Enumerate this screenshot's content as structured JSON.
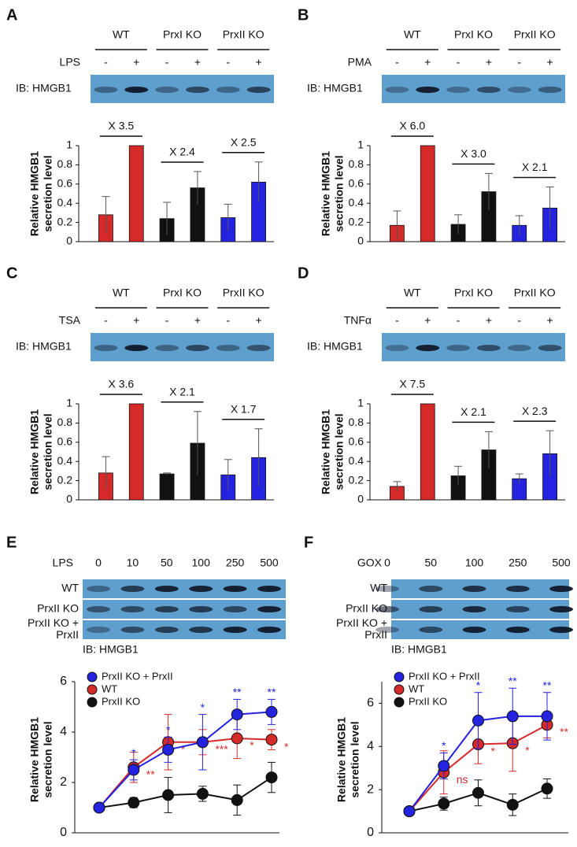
{
  "chart_data": [
    {
      "type": "bar",
      "panel_label": "A",
      "groups": [
        "WT",
        "PrxI KO",
        "PrxII KO"
      ],
      "treatment": "LPS",
      "signs": [
        "-",
        "+",
        "-",
        "+",
        "-",
        "+"
      ],
      "blot_label": "IB: HMGB1",
      "ylabel": [
        "Relative HMGB1",
        "secretion level"
      ],
      "values": [
        0.28,
        1,
        0.24,
        0.56,
        0.25,
        0.62
      ],
      "errors": [
        0.19,
        0,
        0.17,
        0.17,
        0.14,
        0.21
      ],
      "colors": [
        "#d42a2a",
        "#d42a2a",
        "#111111",
        "#111111",
        "#2323e0",
        "#2323e0"
      ],
      "fold_labels": [
        "X 3.5",
        "X 2.4",
        "X 2.5"
      ],
      "ylim": [
        0,
        1
      ],
      "yticks": [
        0,
        0.2,
        0.4,
        0.6,
        0.8,
        1
      ]
    },
    {
      "type": "bar",
      "panel_label": "B",
      "groups": [
        "WT",
        "PrxI KO",
        "PrxII KO"
      ],
      "treatment": "PMA",
      "signs": [
        "-",
        "+",
        "-",
        "+",
        "-",
        "+"
      ],
      "blot_label": "IB: HMGB1",
      "ylabel": [
        "Relative HMGB1",
        "secretion level"
      ],
      "values": [
        0.17,
        1,
        0.18,
        0.52,
        0.17,
        0.35
      ],
      "errors": [
        0.15,
        0,
        0.1,
        0.19,
        0.1,
        0.22
      ],
      "colors": [
        "#d42a2a",
        "#d42a2a",
        "#111111",
        "#111111",
        "#2323e0",
        "#2323e0"
      ],
      "fold_labels": [
        "X 6.0",
        "X 3.0",
        "X 2.1"
      ],
      "ylim": [
        0,
        1
      ],
      "yticks": [
        0,
        0.2,
        0.4,
        0.6,
        0.8,
        1
      ]
    },
    {
      "type": "bar",
      "panel_label": "C",
      "groups": [
        "WT",
        "PrxI KO",
        "PrxII KO"
      ],
      "treatment": "TSA",
      "signs": [
        "-",
        "+",
        "-",
        "+",
        "-",
        "+"
      ],
      "blot_label": "IB: HMGB1",
      "ylabel": [
        "Relative HMGB1",
        "secretion level"
      ],
      "values": [
        0.28,
        1,
        0.27,
        0.59,
        0.26,
        0.44
      ],
      "errors": [
        0.17,
        0,
        0.01,
        0.33,
        0.16,
        0.3
      ],
      "colors": [
        "#d42a2a",
        "#d42a2a",
        "#111111",
        "#111111",
        "#2323e0",
        "#2323e0"
      ],
      "fold_labels": [
        "X 3.6",
        "X 2.1",
        "X 1.7"
      ],
      "ylim": [
        0,
        1
      ],
      "yticks": [
        0,
        0.2,
        0.4,
        0.6,
        0.8,
        1
      ]
    },
    {
      "type": "bar",
      "panel_label": "D",
      "groups": [
        "WT",
        "PrxI KO",
        "PrxII KO"
      ],
      "treatment": "TNFα",
      "signs": [
        "-",
        "+",
        "-",
        "+",
        "-",
        "+"
      ],
      "blot_label": "IB: HMGB1",
      "ylabel": [
        "Relative HMGB1",
        "secretion level"
      ],
      "values": [
        0.14,
        1,
        0.25,
        0.52,
        0.22,
        0.48
      ],
      "errors": [
        0.05,
        0,
        0.1,
        0.19,
        0.05,
        0.24
      ],
      "colors": [
        "#d42a2a",
        "#d42a2a",
        "#111111",
        "#111111",
        "#2323e0",
        "#2323e0"
      ],
      "fold_labels": [
        "X 7.5",
        "X 2.1",
        "X 2.3"
      ],
      "ylim": [
        0,
        1
      ],
      "yticks": [
        0,
        0.2,
        0.4,
        0.6,
        0.8,
        1
      ]
    },
    {
      "type": "line",
      "panel_label": "E",
      "treatment": "LPS",
      "categories": [
        "0",
        "10",
        "50",
        "100",
        "250",
        "500"
      ],
      "blot_rows": [
        [
          "WT"
        ],
        [
          "PrxII KO"
        ],
        [
          "PrxII KO +",
          "PrxII"
        ]
      ],
      "blot_label": "IB: HMGB1",
      "ylabel": [
        "Relative HMGB1",
        "secretion level"
      ],
      "series": [
        {
          "name": "PrxII KO + PrxII",
          "color": "#2323e0",
          "values": [
            1,
            2.5,
            3.3,
            3.6,
            4.7,
            4.8
          ],
          "errors": [
            0,
            0.4,
            0.5,
            1.1,
            0.6,
            0.5
          ],
          "significance": [
            null,
            "*",
            "*",
            "*",
            "**",
            "**"
          ]
        },
        {
          "name": "WT",
          "color": "#d42a2a",
          "values": [
            1,
            2.6,
            3.6,
            3.6,
            3.75,
            3.7
          ],
          "errors": [
            0,
            0.6,
            1.1,
            0.5,
            0.8,
            0.4
          ],
          "significance": [
            null,
            "**",
            "*",
            "***",
            "*",
            "*"
          ]
        },
        {
          "name": "PrxII KO",
          "color": "#111111",
          "values": [
            1,
            1.2,
            1.5,
            1.55,
            1.3,
            2.2
          ],
          "errors": [
            0,
            0.2,
            0.7,
            0.3,
            0.6,
            0.6
          ],
          "significance": [
            null,
            null,
            null,
            null,
            null,
            null
          ]
        }
      ],
      "ylim": [
        0,
        6
      ],
      "yticks": [
        0,
        2,
        4,
        6
      ],
      "legend": "upper-left"
    },
    {
      "type": "line",
      "panel_label": "F",
      "treatment": "GOX",
      "categories": [
        "0",
        "50",
        "100",
        "250",
        "500"
      ],
      "blot_rows": [
        [
          "WT"
        ],
        [
          "PrxII KO"
        ],
        [
          "PrxII KO +",
          "PrxII"
        ]
      ],
      "blot_label": "IB: HMGB1",
      "ylabel": [
        "Relative HMGB1",
        "secretion level"
      ],
      "series": [
        {
          "name": "PrxII KO + PrxII",
          "color": "#2323e0",
          "values": [
            1,
            3.1,
            5.2,
            5.4,
            5.4
          ],
          "errors": [
            0,
            0.6,
            1.3,
            1.3,
            1.1
          ],
          "significance": [
            null,
            "*",
            "*",
            "**",
            "**"
          ]
        },
        {
          "name": "WT",
          "color": "#d42a2a",
          "values": [
            1,
            2.8,
            4.1,
            4.15,
            5
          ],
          "errors": [
            0,
            1,
            0.9,
            1.3,
            0.6
          ],
          "significance": [
            null,
            "ns",
            "*",
            "*",
            "**"
          ]
        },
        {
          "name": "PrxII KO",
          "color": "#111111",
          "values": [
            1,
            1.35,
            1.85,
            1.3,
            2.05
          ],
          "errors": [
            0,
            0.3,
            0.6,
            0.5,
            0.45
          ],
          "significance": [
            null,
            null,
            null,
            null,
            null
          ]
        }
      ],
      "ylim": [
        0,
        7
      ],
      "yticks": [
        0,
        2,
        4,
        6
      ],
      "legend": "upper-left"
    }
  ]
}
